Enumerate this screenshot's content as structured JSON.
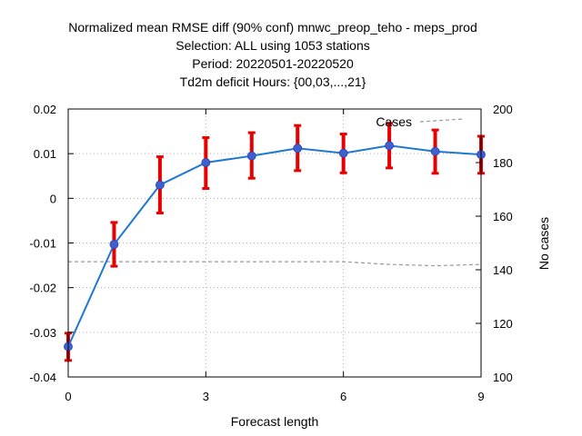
{
  "chart_data": {
    "type": "line",
    "title_lines": [
      "Normalized mean RMSE diff (90% conf) mnwc_preop_teho - meps_prod",
      "Selection: ALL using  1053 stations",
      "Period: 20220501-20220520",
      "Td2m deficit   Hours: {00,03,...,21}"
    ],
    "xlabel": "Forecast length",
    "ylabel_right": "No cases",
    "xlim": [
      0,
      9
    ],
    "ylim": [
      -0.04,
      0.02
    ],
    "y2lim": [
      100,
      200
    ],
    "x_ticks": [
      "0",
      "3",
      "6",
      "9"
    ],
    "y_ticks": [
      "0.02",
      "0.01",
      "0",
      "-0.01",
      "-0.02",
      "-0.03",
      "-0.04"
    ],
    "y2_ticks": [
      "200",
      "180",
      "160",
      "140",
      "120",
      "100"
    ],
    "grid": true,
    "legend": {
      "position": "top-right",
      "entries": [
        "Cases"
      ]
    },
    "colors": {
      "series": "#1f77d4",
      "marker": "#4060d0",
      "errorbar": "#e60000",
      "cases": "#999999",
      "grid": "#b0b0b0"
    },
    "series": [
      {
        "axis": "left",
        "x": [
          0,
          1,
          2,
          3,
          4,
          5,
          6,
          7,
          8,
          9
        ],
        "y": [
          -0.0332,
          -0.0103,
          0.003,
          0.008,
          0.0095,
          0.0112,
          0.0101,
          0.0118,
          0.0105,
          0.0098
        ],
        "err_low": [
          -0.0363,
          -0.0152,
          -0.0033,
          0.0022,
          0.0045,
          0.0062,
          0.0057,
          0.0068,
          0.0056,
          0.0056
        ],
        "err_high": [
          -0.0302,
          -0.0054,
          0.0093,
          0.0136,
          0.0147,
          0.0163,
          0.0144,
          0.0168,
          0.0153,
          0.0139
        ]
      },
      {
        "name": "Cases",
        "axis": "right",
        "style": "dashed",
        "x": [
          0,
          1,
          2,
          3,
          4,
          5,
          6,
          7,
          8,
          9
        ],
        "y": [
          143,
          143,
          143,
          143,
          143,
          143,
          143,
          142,
          141.5,
          142
        ]
      }
    ]
  }
}
